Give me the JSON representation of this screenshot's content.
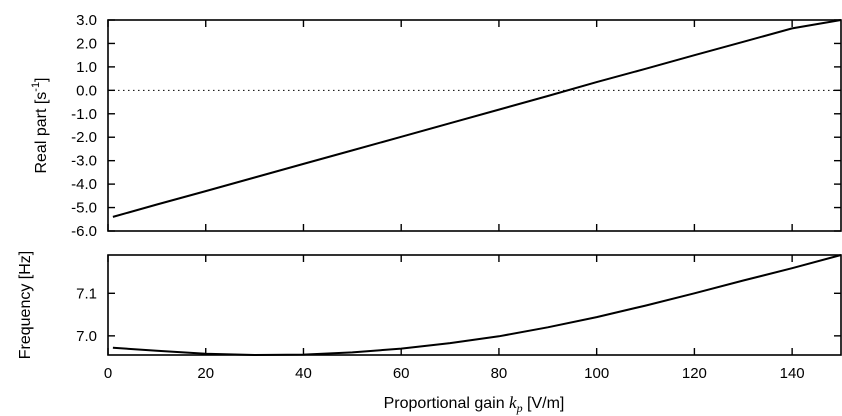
{
  "chart_data": [
    {
      "type": "line",
      "ylabel_main": "Real part [s",
      "ylabel_sup": "-1",
      "ylabel_end": "]",
      "xlim": [
        0,
        150
      ],
      "ylim": [
        -6.0,
        3.0
      ],
      "yticks": [
        -6.0,
        -5.0,
        -4.0,
        -3.0,
        -2.0,
        -1.0,
        0.0,
        1.0,
        2.0,
        3.0
      ],
      "ytick_labels": [
        "-6.0",
        "-5.0",
        "-4.0",
        "-3.0",
        "-2.0",
        "-1.0",
        "0.0",
        "1.0",
        "2.0",
        "3.0"
      ],
      "xticks": [
        0,
        20,
        40,
        60,
        80,
        100,
        120,
        140
      ],
      "zero_reference_line": 0.0,
      "series": [
        {
          "x": [
            1,
            10,
            20,
            30,
            40,
            50,
            60,
            70,
            80,
            90,
            100,
            110,
            120,
            130,
            140,
            150
          ],
          "y": [
            -5.4,
            -4.87,
            -4.3,
            -3.72,
            -3.14,
            -2.56,
            -1.98,
            -1.4,
            -0.82,
            -0.24,
            0.35,
            0.92,
            1.5,
            2.07,
            2.64,
            3.0
          ]
        }
      ]
    },
    {
      "type": "line",
      "ylabel": "Frequency [Hz]",
      "xlabel_main": "Proportional gain ",
      "xlabel_var": "k",
      "xlabel_sub": "p",
      "xlabel_end": " [V/m]",
      "xlim": [
        0,
        150
      ],
      "ylim": [
        6.955,
        7.19
      ],
      "yticks": [
        7.0,
        7.1
      ],
      "ytick_labels": [
        "7.0",
        "7.1"
      ],
      "xticks": [
        0,
        20,
        40,
        60,
        80,
        100,
        120,
        140
      ],
      "xtick_labels": [
        "0",
        "20",
        "40",
        "60",
        "80",
        "100",
        "120",
        "140"
      ],
      "series": [
        {
          "x": [
            1,
            10,
            20,
            30,
            40,
            50,
            60,
            70,
            80,
            90,
            100,
            110,
            120,
            130,
            140,
            150
          ],
          "y": [
            6.972,
            6.965,
            6.958,
            6.955,
            6.956,
            6.961,
            6.97,
            6.983,
            6.999,
            7.02,
            7.044,
            7.071,
            7.1,
            7.13,
            7.159,
            7.19
          ]
        }
      ]
    }
  ]
}
